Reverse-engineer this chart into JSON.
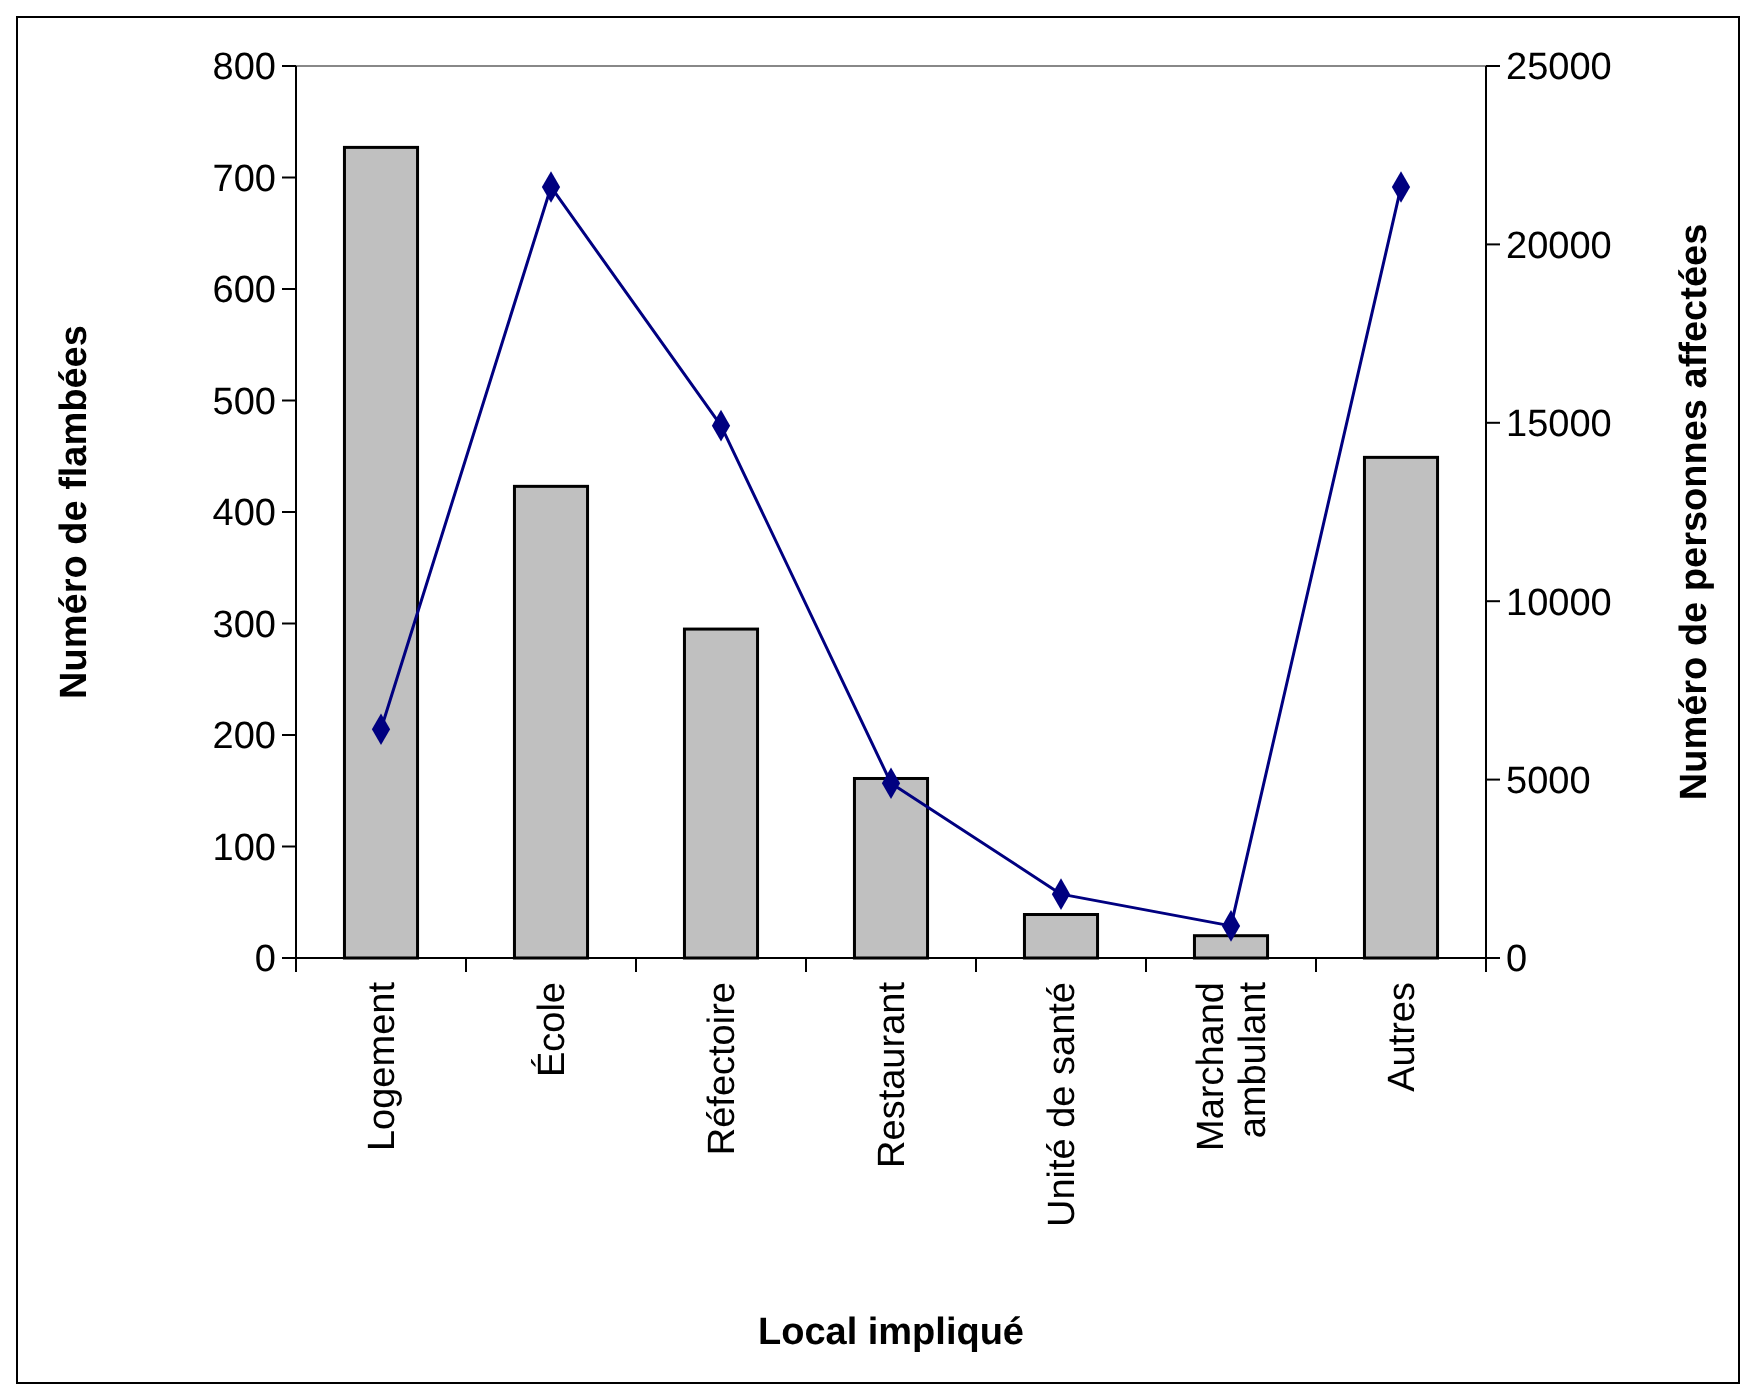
{
  "chart_data": {
    "type": "bar",
    "xlabel": "Local impliqué",
    "ylabel": "Numéro de flambées",
    "y2label": "Numéro de personnes affectées",
    "categories": [
      "Logement",
      "École",
      "Réfectoire",
      "Restaurant",
      "Unité de santé",
      "Marchand ambulant",
      "Autres"
    ],
    "series": [
      {
        "color": "#c0c0c0",
        "values": [
          727,
          423,
          295,
          161,
          39,
          20,
          449
        ]
      },
      {
        "type": "line",
        "axis": "y2",
        "color": "#000080",
        "marker": "diamond",
        "values": [
          6410,
          21610,
          14920,
          4900,
          1790,
          900,
          21610
        ]
      }
    ],
    "ylim": [
      0,
      800
    ],
    "yticks": [
      0,
      100,
      200,
      300,
      400,
      500,
      600,
      700,
      800
    ],
    "y2lim": [
      0,
      25000
    ],
    "y2ticks": [
      0,
      5000,
      10000,
      15000,
      20000,
      25000
    ],
    "grid": false
  }
}
